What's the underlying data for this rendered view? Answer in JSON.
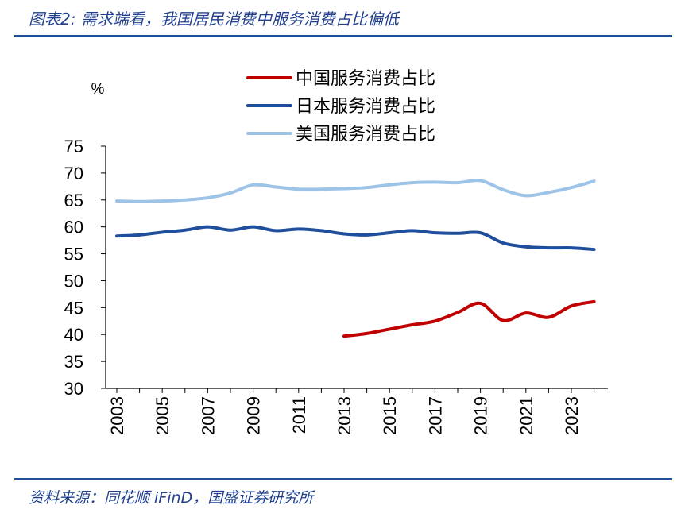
{
  "figure": {
    "title": "图表2: 需求端看，我国居民消费中服务消费占比偏低",
    "source": "资料来源：同花顺 iFinD，国盛证券研究所"
  },
  "chart_data": {
    "type": "line",
    "unit_label": "%",
    "ylim": [
      30,
      75
    ],
    "yticks": [
      30,
      35,
      40,
      45,
      50,
      55,
      60,
      65,
      70,
      75
    ],
    "xlim": [
      2003,
      2024
    ],
    "xticks": [
      "2003",
      "2005",
      "2007",
      "2009",
      "2011",
      "2013",
      "2015",
      "2017",
      "2019",
      "2021",
      "2023"
    ],
    "legend_position": "top-center",
    "grid": false,
    "series": [
      {
        "name": "中国服务消费占比",
        "color": "#c00000",
        "x": [
          2013,
          2014,
          2015,
          2016,
          2017,
          2018,
          2019,
          2020,
          2021,
          2022,
          2023,
          2024
        ],
        "y": [
          39.7,
          40.2,
          41.0,
          41.8,
          42.5,
          44.1,
          45.8,
          42.6,
          44.0,
          43.2,
          45.3,
          46.1
        ]
      },
      {
        "name": "日本服务消费占比",
        "color": "#1f4e9c",
        "x": [
          2003,
          2004,
          2005,
          2006,
          2007,
          2008,
          2009,
          2010,
          2011,
          2012,
          2013,
          2014,
          2015,
          2016,
          2017,
          2018,
          2019,
          2020,
          2021,
          2022,
          2023,
          2024
        ],
        "y": [
          58.3,
          58.5,
          59.0,
          59.4,
          60.0,
          59.4,
          60.0,
          59.3,
          59.6,
          59.3,
          58.7,
          58.5,
          58.9,
          59.3,
          58.9,
          58.8,
          58.9,
          57.0,
          56.3,
          56.1,
          56.1,
          55.8
        ]
      },
      {
        "name": "美国服务消费占比",
        "color": "#9dc3e6",
        "x": [
          2003,
          2004,
          2005,
          2006,
          2007,
          2008,
          2009,
          2010,
          2011,
          2012,
          2013,
          2014,
          2015,
          2016,
          2017,
          2018,
          2019,
          2020,
          2021,
          2022,
          2023,
          2024
        ],
        "y": [
          64.8,
          64.7,
          64.8,
          65.0,
          65.4,
          66.3,
          67.8,
          67.4,
          67.0,
          67.0,
          67.1,
          67.3,
          67.8,
          68.2,
          68.3,
          68.2,
          68.6,
          66.9,
          65.8,
          66.4,
          67.3,
          68.5
        ]
      }
    ]
  }
}
